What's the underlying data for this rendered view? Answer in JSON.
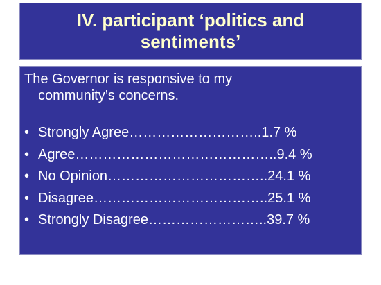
{
  "title": "IV. participant ‘politics and sentiments’",
  "body": {
    "statement": "The Governor is responsive to my community’s concerns.",
    "items": [
      "Strongly Agree………………………..1.7 %",
      "Agree……………………………………..9.4 %",
      "No Opinion……………………………..24.1 %",
      "Disagree………………………………..25.1 %",
      "Strongly Disagree……………………..39.7 %"
    ]
  }
}
